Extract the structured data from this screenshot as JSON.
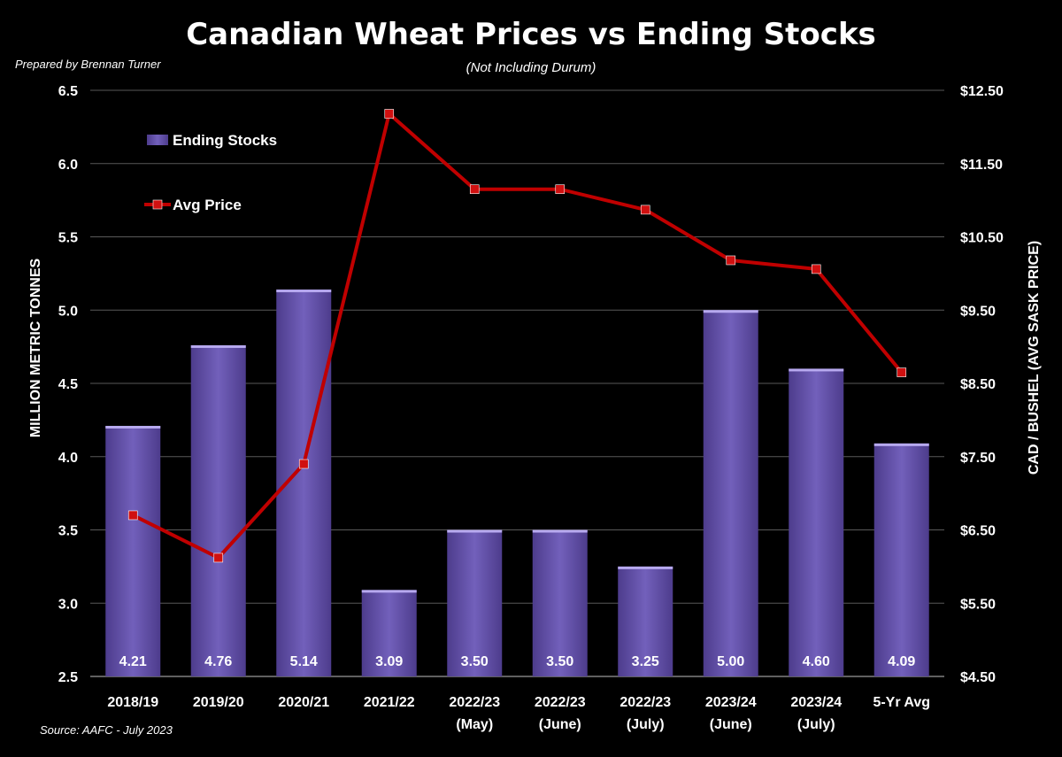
{
  "chart_data": {
    "type": "bar",
    "title": "Canadian Wheat Prices vs Ending Stocks",
    "subtitle": "(Not Including Durum)",
    "credit": "Prepared by Brennan Turner",
    "source": "Source: AAFC - July 2023",
    "categories": [
      [
        "2018/19"
      ],
      [
        "2019/20"
      ],
      [
        "2020/21"
      ],
      [
        "2021/22"
      ],
      [
        "2022/23",
        "(May)"
      ],
      [
        "2022/23",
        "(June)"
      ],
      [
        "2022/23",
        "(July)"
      ],
      [
        "2023/24",
        "(June)"
      ],
      [
        "2023/24",
        "(July)"
      ],
      [
        "5-Yr Avg"
      ]
    ],
    "ylabel_left": "MILLION METRIC TONNES",
    "ylabel_right": "CAD / BUSHEL (AVG SASK PRICE)",
    "ylim_left": [
      2.5,
      6.5
    ],
    "ylim_right": [
      4.5,
      12.5
    ],
    "yticks_left": [
      "2.5",
      "3.0",
      "3.5",
      "4.0",
      "4.5",
      "5.0",
      "5.5",
      "6.0",
      "6.5"
    ],
    "yticks_right": [
      "$4.50",
      "$5.50",
      "$6.50",
      "$7.50",
      "$8.50",
      "$9.50",
      "$10.50",
      "$11.50",
      "$12.50"
    ],
    "grid": true,
    "legend_position": "top-left",
    "series": [
      {
        "name": "Ending Stocks",
        "type": "bar",
        "axis": "left",
        "color": "#6a55b0",
        "values": [
          4.21,
          4.76,
          5.14,
          3.09,
          3.5,
          3.5,
          3.25,
          5.0,
          4.6,
          4.09
        ],
        "labels": [
          "4.21",
          "4.76",
          "5.14",
          "3.09",
          "3.50",
          "3.50",
          "3.25",
          "5.00",
          "4.60",
          "4.09"
        ]
      },
      {
        "name": "Avg Price",
        "type": "line",
        "axis": "right",
        "color": "#c00000",
        "values": [
          6.7,
          6.12,
          7.4,
          12.18,
          11.15,
          11.15,
          10.87,
          10.18,
          10.06,
          8.65
        ]
      }
    ]
  }
}
